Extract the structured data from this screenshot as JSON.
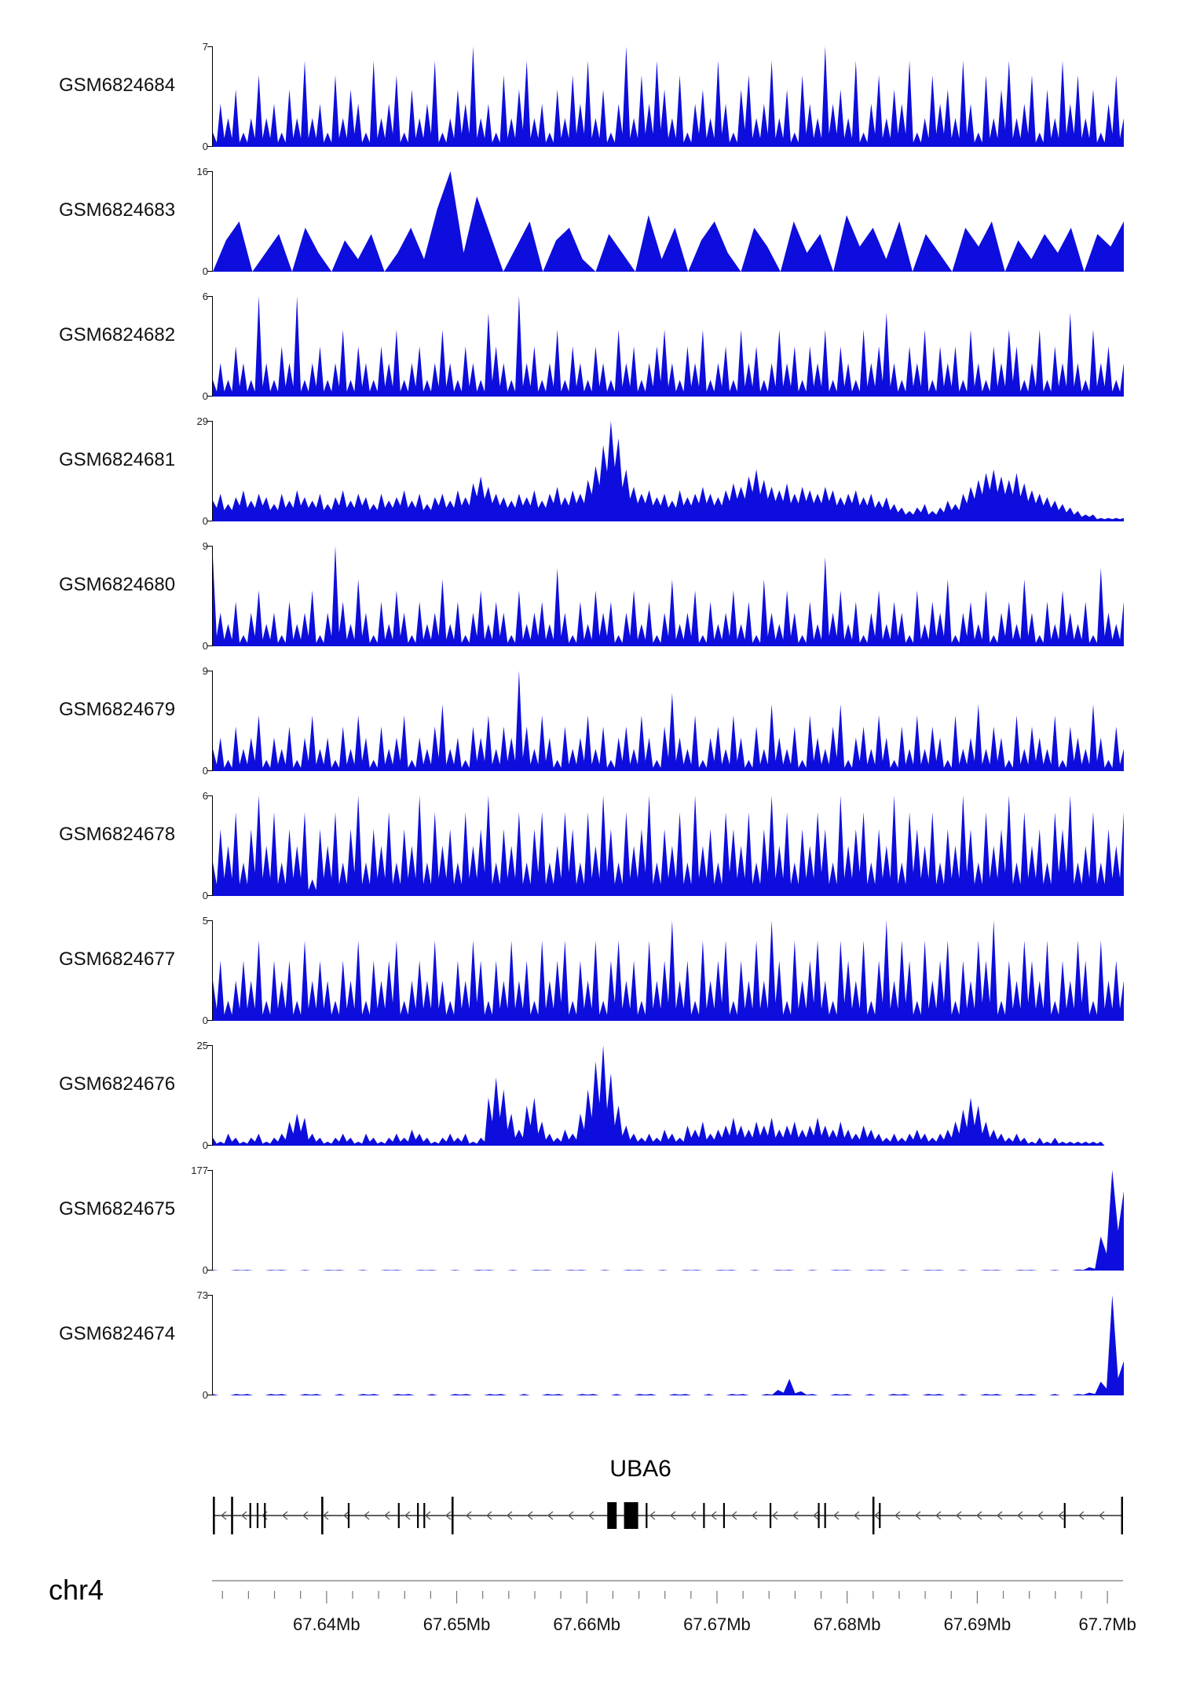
{
  "page": {
    "background": "#ffffff"
  },
  "chart_data": {
    "type": "area",
    "title": "",
    "region": {
      "chromosome": "chr4",
      "start_mb": 67.6312,
      "end_mb": 67.7012,
      "unit": "Mb"
    },
    "signal_color": "#0d0ddd",
    "axis": {
      "chrom_label": "chr4",
      "tick_positions_mb": [
        67.64,
        67.65,
        67.66,
        67.67,
        67.68,
        67.69,
        67.7
      ],
      "tick_labels": [
        "67.64Mb",
        "67.65Mb",
        "67.66Mb",
        "67.67Mb",
        "67.68Mb",
        "67.69Mb",
        "67.7Mb"
      ],
      "minor_step_mb": 0.002
    },
    "gene": {
      "name": "UBA6",
      "strand": "reverse",
      "exons": [
        {
          "frac": 0.002,
          "kind": "tall"
        },
        {
          "frac": 0.022,
          "kind": "tall"
        },
        {
          "frac": 0.042,
          "kind": "tick"
        },
        {
          "frac": 0.05,
          "kind": "tick"
        },
        {
          "frac": 0.058,
          "kind": "tick"
        },
        {
          "frac": 0.121,
          "kind": "tall"
        },
        {
          "frac": 0.15,
          "kind": "tick"
        },
        {
          "frac": 0.205,
          "kind": "tick"
        },
        {
          "frac": 0.226,
          "kind": "tick"
        },
        {
          "frac": 0.233,
          "kind": "tick"
        },
        {
          "frac": 0.264,
          "kind": "tall"
        },
        {
          "frac": 0.439,
          "kind": "block",
          "w": 12
        },
        {
          "frac": 0.46,
          "kind": "block",
          "w": 18
        },
        {
          "frac": 0.477,
          "kind": "tick"
        },
        {
          "frac": 0.54,
          "kind": "tick"
        },
        {
          "frac": 0.562,
          "kind": "tick"
        },
        {
          "frac": 0.613,
          "kind": "tick"
        },
        {
          "frac": 0.666,
          "kind": "tick"
        },
        {
          "frac": 0.673,
          "kind": "tick"
        },
        {
          "frac": 0.726,
          "kind": "tall"
        },
        {
          "frac": 0.733,
          "kind": "tick"
        },
        {
          "frac": 0.936,
          "kind": "tick"
        },
        {
          "frac": 0.999,
          "kind": "tall"
        }
      ]
    },
    "tracks": [
      {
        "label": "GSM6824684",
        "ymax": 7,
        "ymin": 0,
        "dip": 0.3,
        "values": [
          1,
          3,
          2,
          4,
          1,
          2,
          5,
          2,
          3,
          1,
          4,
          2,
          6,
          2,
          3,
          1,
          5,
          2,
          4,
          3,
          1,
          6,
          2,
          3,
          5,
          1,
          4,
          2,
          3,
          6,
          1,
          2,
          4,
          3,
          7,
          2,
          3,
          1,
          5,
          2,
          4,
          6,
          2,
          3,
          1,
          4,
          2,
          5,
          3,
          6,
          2,
          4,
          1,
          3,
          7,
          2,
          5,
          3,
          6,
          4,
          2,
          5,
          1,
          3,
          4,
          2,
          6,
          3,
          1,
          4,
          5,
          2,
          3,
          6,
          2,
          4,
          1,
          5,
          3,
          2,
          7,
          3,
          4,
          2,
          6,
          1,
          3,
          5,
          2,
          4,
          3,
          6,
          1,
          2,
          5,
          3,
          4,
          2,
          6,
          3,
          1,
          5,
          2,
          4,
          6,
          2,
          3,
          5,
          1,
          4,
          2,
          6,
          3,
          5,
          2,
          4,
          1,
          3,
          5,
          2
        ]
      },
      {
        "label": "GSM6824683",
        "ymax": 16,
        "ymin": 0,
        "dip": null,
        "values": [
          0,
          5,
          8,
          0,
          3,
          6,
          0,
          7,
          3,
          0,
          5,
          2,
          6,
          0,
          3,
          7,
          2,
          10,
          16,
          3,
          12,
          6,
          0,
          4,
          8,
          0,
          5,
          7,
          2,
          0,
          6,
          3,
          0,
          9,
          2,
          7,
          0,
          5,
          8,
          3,
          0,
          7,
          4,
          0,
          8,
          3,
          6,
          0,
          9,
          4,
          7,
          2,
          8,
          0,
          6,
          3,
          0,
          7,
          4,
          8,
          0,
          5,
          2,
          6,
          3,
          7,
          0,
          6,
          4,
          8
        ]
      },
      {
        "label": "GSM6824682",
        "ymax": 6,
        "ymin": 0,
        "dip": 0.3,
        "values": [
          1,
          2,
          1,
          3,
          2,
          1,
          6,
          2,
          1,
          3,
          2,
          6,
          1,
          2,
          3,
          1,
          2,
          4,
          1,
          3,
          2,
          1,
          3,
          2,
          4,
          1,
          2,
          3,
          1,
          2,
          4,
          2,
          1,
          3,
          2,
          1,
          5,
          3,
          2,
          1,
          6,
          2,
          3,
          1,
          2,
          4,
          1,
          3,
          2,
          1,
          3,
          2,
          1,
          4,
          2,
          3,
          1,
          2,
          3,
          4,
          2,
          1,
          3,
          2,
          4,
          1,
          2,
          3,
          1,
          4,
          2,
          3,
          1,
          2,
          4,
          2,
          3,
          1,
          3,
          2,
          4,
          1,
          3,
          2,
          1,
          4,
          2,
          3,
          5,
          2,
          1,
          3,
          2,
          4,
          1,
          3,
          2,
          3,
          1,
          4,
          2,
          1,
          3,
          2,
          4,
          3,
          1,
          2,
          4,
          1,
          3,
          2,
          5,
          2,
          1,
          4,
          2,
          3,
          1,
          2
        ]
      },
      {
        "label": "GSM6824681",
        "ymax": 29,
        "ymin": 0,
        "dip": 0.65,
        "values": [
          6,
          8,
          5,
          7,
          9,
          6,
          8,
          7,
          5,
          8,
          6,
          9,
          7,
          6,
          8,
          5,
          7,
          9,
          6,
          8,
          7,
          5,
          8,
          6,
          7,
          9,
          6,
          8,
          5,
          7,
          8,
          6,
          9,
          7,
          11,
          13,
          10,
          8,
          7,
          6,
          8,
          7,
          9,
          6,
          8,
          10,
          7,
          9,
          8,
          12,
          16,
          22,
          29,
          24,
          15,
          10,
          8,
          9,
          7,
          8,
          6,
          9,
          7,
          8,
          10,
          8,
          7,
          9,
          11,
          10,
          13,
          15,
          12,
          10,
          9,
          11,
          8,
          10,
          9,
          8,
          10,
          9,
          7,
          8,
          9,
          7,
          8,
          6,
          7,
          5,
          4,
          3,
          4,
          5,
          3,
          4,
          6,
          5,
          8,
          10,
          12,
          14,
          15,
          13,
          12,
          14,
          11,
          9,
          8,
          7,
          6,
          5,
          4,
          3,
          2,
          2,
          1,
          1,
          1,
          1
        ]
      },
      {
        "label": "GSM6824680",
        "ymax": 9,
        "ymin": 0,
        "dip": 0.3,
        "values": [
          8,
          3,
          2,
          4,
          1,
          3,
          5,
          2,
          3,
          1,
          4,
          2,
          3,
          5,
          1,
          3,
          9,
          4,
          2,
          6,
          3,
          1,
          4,
          2,
          5,
          3,
          1,
          4,
          2,
          3,
          6,
          2,
          4,
          1,
          3,
          5,
          2,
          4,
          3,
          1,
          5,
          2,
          3,
          4,
          2,
          7,
          3,
          1,
          4,
          2,
          5,
          3,
          4,
          1,
          3,
          5,
          2,
          4,
          1,
          3,
          6,
          2,
          3,
          5,
          1,
          4,
          2,
          3,
          5,
          2,
          4,
          1,
          6,
          3,
          2,
          5,
          3,
          1,
          4,
          2,
          8,
          3,
          5,
          2,
          4,
          1,
          3,
          5,
          2,
          4,
          3,
          1,
          5,
          2,
          4,
          3,
          6,
          1,
          3,
          4,
          2,
          5,
          1,
          3,
          4,
          2,
          6,
          3,
          1,
          4,
          2,
          5,
          3,
          2,
          4,
          1,
          7,
          3,
          2,
          4
        ]
      },
      {
        "label": "GSM6824679",
        "ymax": 9,
        "ymin": 0,
        "dip": 0.3,
        "values": [
          2,
          3,
          1,
          4,
          2,
          3,
          5,
          1,
          3,
          2,
          4,
          1,
          3,
          5,
          2,
          3,
          1,
          4,
          2,
          5,
          3,
          1,
          4,
          2,
          3,
          5,
          1,
          3,
          2,
          4,
          6,
          2,
          3,
          1,
          4,
          3,
          5,
          2,
          4,
          3,
          9,
          4,
          2,
          5,
          3,
          1,
          4,
          2,
          3,
          5,
          2,
          4,
          1,
          3,
          4,
          2,
          5,
          3,
          1,
          4,
          7,
          3,
          2,
          5,
          1,
          3,
          4,
          2,
          5,
          3,
          1,
          4,
          2,
          6,
          3,
          2,
          4,
          1,
          5,
          3,
          2,
          4,
          6,
          1,
          3,
          4,
          2,
          5,
          3,
          1,
          4,
          2,
          5,
          2,
          4,
          3,
          1,
          5,
          2,
          3,
          6,
          2,
          4,
          3,
          1,
          5,
          2,
          4,
          3,
          2,
          5,
          1,
          4,
          3,
          2,
          6,
          3,
          1,
          4,
          2
        ]
      },
      {
        "label": "GSM6824678",
        "ymax": 6,
        "ymin": 0,
        "dip": 0.35,
        "values": [
          2,
          4,
          3,
          5,
          2,
          4,
          6,
          3,
          5,
          2,
          4,
          3,
          5,
          1,
          4,
          3,
          5,
          2,
          4,
          6,
          2,
          4,
          3,
          5,
          2,
          4,
          3,
          6,
          2,
          5,
          3,
          4,
          2,
          5,
          3,
          4,
          6,
          2,
          4,
          3,
          5,
          2,
          4,
          5,
          2,
          3,
          5,
          4,
          2,
          5,
          3,
          6,
          4,
          2,
          5,
          3,
          4,
          6,
          2,
          4,
          3,
          5,
          2,
          6,
          3,
          4,
          2,
          5,
          4,
          3,
          5,
          2,
          4,
          6,
          3,
          5,
          2,
          4,
          3,
          5,
          4,
          2,
          6,
          3,
          4,
          5,
          2,
          4,
          3,
          6,
          2,
          5,
          4,
          3,
          5,
          2,
          4,
          3,
          6,
          4,
          2,
          5,
          3,
          4,
          6,
          2,
          5,
          3,
          4,
          2,
          5,
          4,
          6,
          2,
          3,
          5,
          2,
          4,
          3,
          5
        ]
      },
      {
        "label": "GSM6824677",
        "ymax": 5,
        "ymin": 0,
        "dip": 0.3,
        "values": [
          2,
          3,
          1,
          2,
          3,
          2,
          4,
          1,
          3,
          2,
          3,
          1,
          4,
          2,
          3,
          2,
          1,
          3,
          2,
          4,
          1,
          3,
          2,
          3,
          4,
          1,
          2,
          3,
          2,
          4,
          2,
          1,
          3,
          2,
          4,
          3,
          1,
          3,
          2,
          4,
          2,
          3,
          1,
          4,
          2,
          3,
          4,
          1,
          3,
          2,
          4,
          1,
          3,
          4,
          2,
          3,
          1,
          4,
          2,
          3,
          5,
          2,
          3,
          1,
          4,
          2,
          3,
          4,
          1,
          3,
          2,
          4,
          2,
          5,
          3,
          1,
          4,
          2,
          3,
          4,
          2,
          1,
          4,
          3,
          2,
          4,
          1,
          3,
          5,
          2,
          4,
          3,
          1,
          4,
          2,
          3,
          4,
          1,
          3,
          2,
          4,
          3,
          5,
          1,
          3,
          2,
          4,
          3,
          2,
          4,
          1,
          3,
          2,
          4,
          3,
          1,
          4,
          2,
          3,
          2
        ]
      },
      {
        "label": "GSM6824676",
        "ymax": 25,
        "ymin": 0,
        "dip": 0.5,
        "values": [
          2,
          1,
          3,
          2,
          1,
          2,
          3,
          1,
          2,
          3,
          6,
          8,
          7,
          3,
          2,
          1,
          2,
          3,
          2,
          1,
          3,
          2,
          1,
          2,
          3,
          2,
          4,
          3,
          2,
          1,
          2,
          3,
          2,
          3,
          1,
          2,
          12,
          17,
          14,
          8,
          4,
          10,
          12,
          6,
          3,
          2,
          4,
          3,
          8,
          14,
          21,
          25,
          18,
          10,
          5,
          3,
          2,
          3,
          2,
          4,
          3,
          2,
          5,
          4,
          6,
          3,
          4,
          5,
          7,
          5,
          4,
          6,
          5,
          7,
          4,
          5,
          6,
          4,
          5,
          7,
          5,
          4,
          6,
          4,
          3,
          5,
          4,
          3,
          2,
          3,
          2,
          3,
          4,
          3,
          2,
          3,
          4,
          6,
          9,
          12,
          10,
          6,
          4,
          3,
          2,
          3,
          2,
          1,
          2,
          1,
          2,
          1,
          1,
          1,
          1,
          1,
          1,
          0,
          0,
          0
        ]
      },
      {
        "label": "GSM6824675",
        "ymax": 177,
        "ymin": 0,
        "dip": 0.5,
        "values": [
          1,
          0,
          1,
          1,
          0,
          1,
          1,
          0,
          1,
          0,
          1,
          1,
          0,
          1,
          0,
          1,
          1,
          0,
          1,
          1,
          0,
          1,
          0,
          1,
          1,
          0,
          1,
          0,
          1,
          1,
          0,
          1,
          1,
          0,
          1,
          0,
          1,
          1,
          0,
          1,
          0,
          1,
          1,
          0,
          1,
          1,
          0,
          1,
          0,
          1,
          1,
          0,
          1,
          0,
          1,
          1,
          0,
          1,
          1,
          0,
          1,
          0,
          1,
          1,
          0,
          1,
          0,
          1,
          1,
          0,
          1,
          1,
          0,
          1,
          0,
          2,
          6,
          60,
          177,
          140
        ]
      },
      {
        "label": "GSM6824674",
        "ymax": 73,
        "ymin": 0,
        "dip": 0.5,
        "values": [
          1,
          0,
          1,
          1,
          0,
          1,
          1,
          0,
          1,
          1,
          0,
          1,
          0,
          1,
          1,
          0,
          1,
          1,
          0,
          1,
          0,
          1,
          1,
          0,
          1,
          1,
          0,
          1,
          0,
          1,
          1,
          0,
          1,
          1,
          0,
          1,
          0,
          1,
          1,
          0,
          1,
          1,
          0,
          1,
          0,
          1,
          1,
          0,
          1,
          4,
          12,
          3,
          1,
          0,
          1,
          1,
          0,
          1,
          0,
          1,
          1,
          0,
          1,
          1,
          0,
          1,
          0,
          1,
          1,
          0,
          1,
          1,
          0,
          1,
          0,
          1,
          2,
          10,
          73,
          25
        ]
      }
    ]
  }
}
